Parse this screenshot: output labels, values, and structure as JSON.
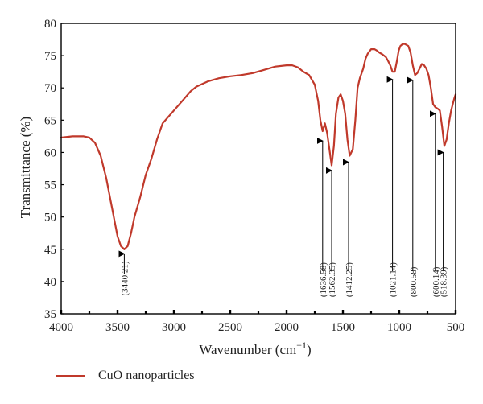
{
  "chart_data": {
    "type": "line",
    "xlabel": "Wavenumber (cm",
    "xlabel_sup": "−1",
    "xlabel_close": ")",
    "ylabel": "Transmittance (%)",
    "xlim": [
      4000,
      500
    ],
    "ylim": [
      35,
      80
    ],
    "xticks": [
      4000,
      3500,
      3000,
      2500,
      2000,
      1500,
      1000,
      500
    ],
    "yticks": [
      35,
      40,
      45,
      50,
      55,
      60,
      65,
      70,
      75,
      80
    ],
    "grid": false,
    "legend_position": "bottom-left",
    "colors": {
      "series": "#c0392b",
      "axes": "#000000"
    },
    "series": [
      {
        "name": "CuO nanoparticles",
        "x": [
          4000,
          3900,
          3850,
          3800,
          3750,
          3700,
          3650,
          3600,
          3550,
          3500,
          3470,
          3440,
          3410,
          3380,
          3350,
          3300,
          3250,
          3200,
          3150,
          3100,
          3050,
          3000,
          2950,
          2900,
          2850,
          2800,
          2700,
          2600,
          2500,
          2400,
          2300,
          2200,
          2100,
          2000,
          1950,
          1900,
          1850,
          1800,
          1750,
          1720,
          1700,
          1680,
          1660,
          1640,
          1620,
          1600,
          1580,
          1562,
          1540,
          1520,
          1500,
          1480,
          1460,
          1440,
          1412,
          1390,
          1370,
          1350,
          1320,
          1300,
          1280,
          1250,
          1220,
          1200,
          1180,
          1150,
          1120,
          1100,
          1080,
          1060,
          1040,
          1021,
          1005,
          990,
          970,
          950,
          920,
          900,
          880,
          860,
          840,
          820,
          800,
          780,
          760,
          740,
          720,
          700,
          680,
          660,
          640,
          620,
          600,
          580,
          560,
          540,
          518,
          510,
          500
        ],
        "y": [
          62.3,
          62.5,
          62.5,
          62.5,
          62.3,
          61.5,
          59.5,
          56,
          51.5,
          47,
          45.5,
          45,
          45.5,
          47.5,
          50,
          53,
          56.5,
          59,
          62,
          64.5,
          65.5,
          66.5,
          67.5,
          68.5,
          69.5,
          70.2,
          71,
          71.5,
          71.8,
          72,
          72.3,
          72.8,
          73.3,
          73.5,
          73.5,
          73.2,
          72.5,
          72,
          70.5,
          68,
          65,
          63.3,
          64.5,
          63,
          60.5,
          58,
          61,
          66,
          68.5,
          69,
          68,
          66,
          62,
          59.5,
          60.5,
          65,
          70,
          71.5,
          73,
          74.5,
          75.3,
          76,
          76,
          75.8,
          75.5,
          75.2,
          74.8,
          74.2,
          73.5,
          72.5,
          72.5,
          74.2,
          75.8,
          76.5,
          76.8,
          76.8,
          76.5,
          75.5,
          73.5,
          72,
          72.3,
          73,
          73.7,
          73.5,
          73,
          72,
          70,
          67.5,
          67,
          66.8,
          66.5,
          64,
          61,
          62,
          64.5,
          66.5,
          68,
          68.5,
          69
        ]
      }
    ],
    "annotations": [
      {
        "label": "(3440.21)",
        "x": 3440,
        "y_tip": 45.3
      },
      {
        "label": "(1636.58)",
        "x": 1680,
        "y_tip": 62.8
      },
      {
        "label": "(1562.35)",
        "x": 1600,
        "y_tip": 58.2
      },
      {
        "label": "(1412.25)",
        "x": 1450,
        "y_tip": 59.5
      },
      {
        "label": "(1021.14)",
        "x": 1060,
        "y_tip": 72.3
      },
      {
        "label": "(800.58)",
        "x": 880,
        "y_tip": 72.2
      },
      {
        "label": "(600.14)",
        "x": 680,
        "y_tip": 67.0
      },
      {
        "label": "(518.39)",
        "x": 610,
        "y_tip": 61.0
      }
    ]
  },
  "legend": {
    "label": "CuO nanoparticles"
  }
}
